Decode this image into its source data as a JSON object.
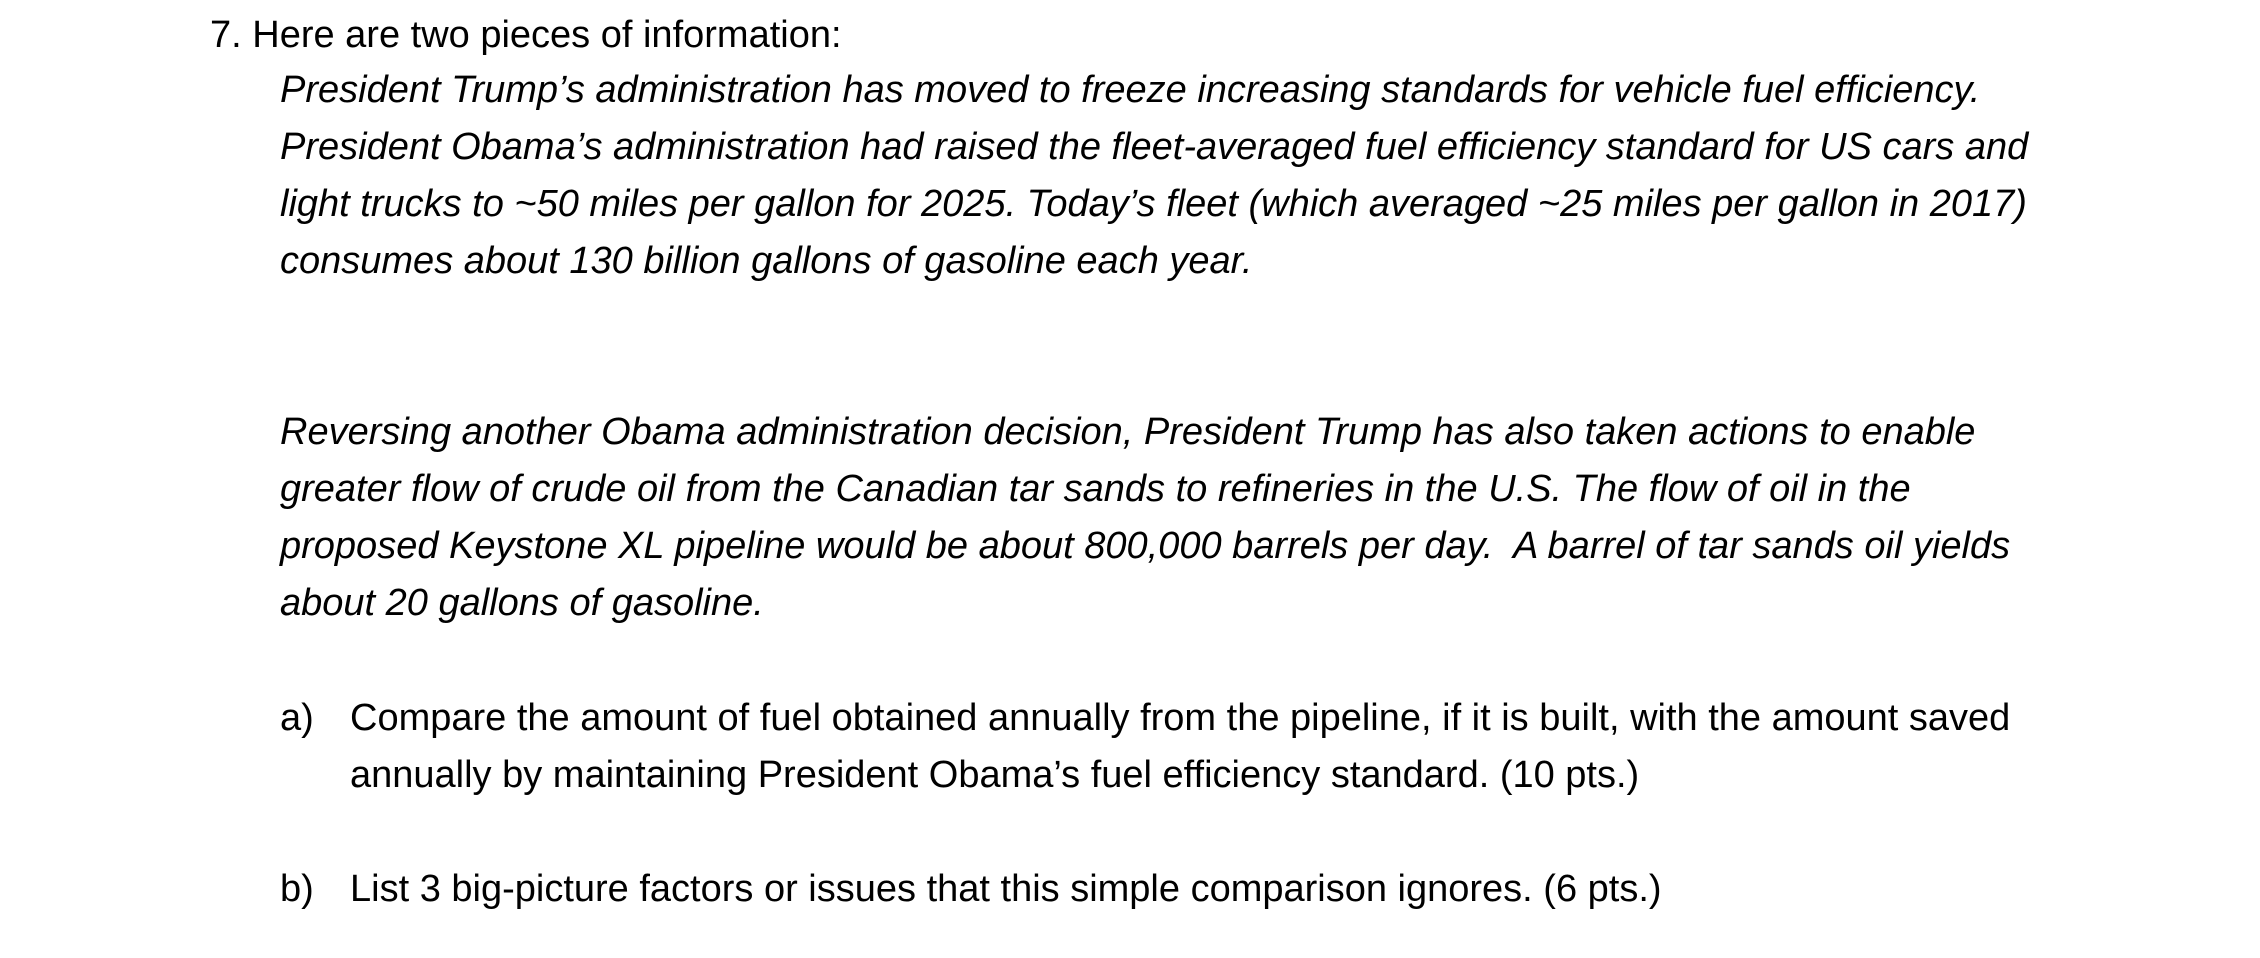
{
  "question": {
    "title": "7. Here are two pieces of information:",
    "info_paragraphs": [
      "President Trump’s administration has moved to freeze increasing standards for vehicle fuel efficiency. President Obama’s administration had raised the fleet-averaged fuel efficiency standard for US cars and light trucks to ~50 miles per gallon for 2025. Today’s fleet (which averaged ~25 miles per gallon in 2017) consumes about 130 billion gallons of gasoline each year.",
      "Reversing another Obama administration decision, President Trump has also taken actions to enable greater flow of crude oil from the Canadian tar sands to refineries in the U.S. The flow of oil in the proposed Keystone XL pipeline would be about 800,000 barrels per day.  A barrel of tar sands oil yields about 20 gallons of gasoline."
    ],
    "subquestions": [
      {
        "label": "a)",
        "text": "Compare the amount of fuel obtained annually from the pipeline, if it is built, with the amount saved annually by maintaining President Obama’s fuel efficiency standard. (10 pts.)"
      },
      {
        "label": "b)",
        "text": "List 3 big-picture factors or issues that this simple comparison ignores.  (6 pts.)"
      }
    ]
  }
}
